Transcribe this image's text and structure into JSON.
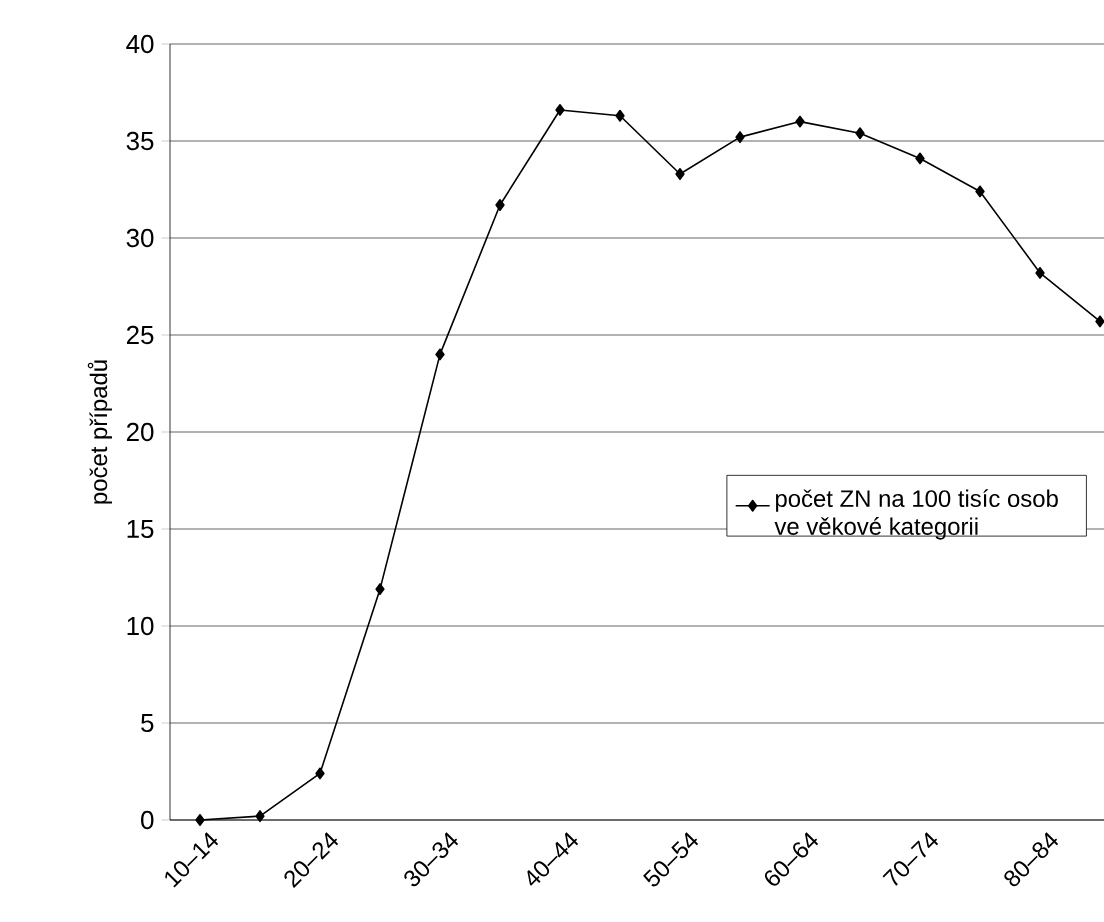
{
  "chart_data": {
    "type": "line",
    "ylabel": "počet případů",
    "categories": [
      "10–14",
      null,
      "20–24",
      null,
      "30–34",
      null,
      "40–44",
      null,
      "50–54",
      null,
      "60–64",
      null,
      "70–74",
      null,
      "80–84",
      null
    ],
    "series": [
      {
        "name": "počet ZN na 100 tisíc osob ve věkové kategorii",
        "color": "#000000",
        "values": [
          0,
          0.2,
          2.4,
          11.9,
          24.0,
          31.7,
          36.6,
          36.3,
          33.3,
          35.2,
          36.0,
          35.4,
          34.1,
          32.4,
          28.2,
          25.7
        ]
      }
    ],
    "ylim": [
      0,
      40
    ],
    "yticks": [
      0,
      5,
      10,
      15,
      20,
      25,
      30,
      35,
      40
    ],
    "grid": "y",
    "legend": "right",
    "marker": "diamond",
    "line_style": "solid"
  }
}
